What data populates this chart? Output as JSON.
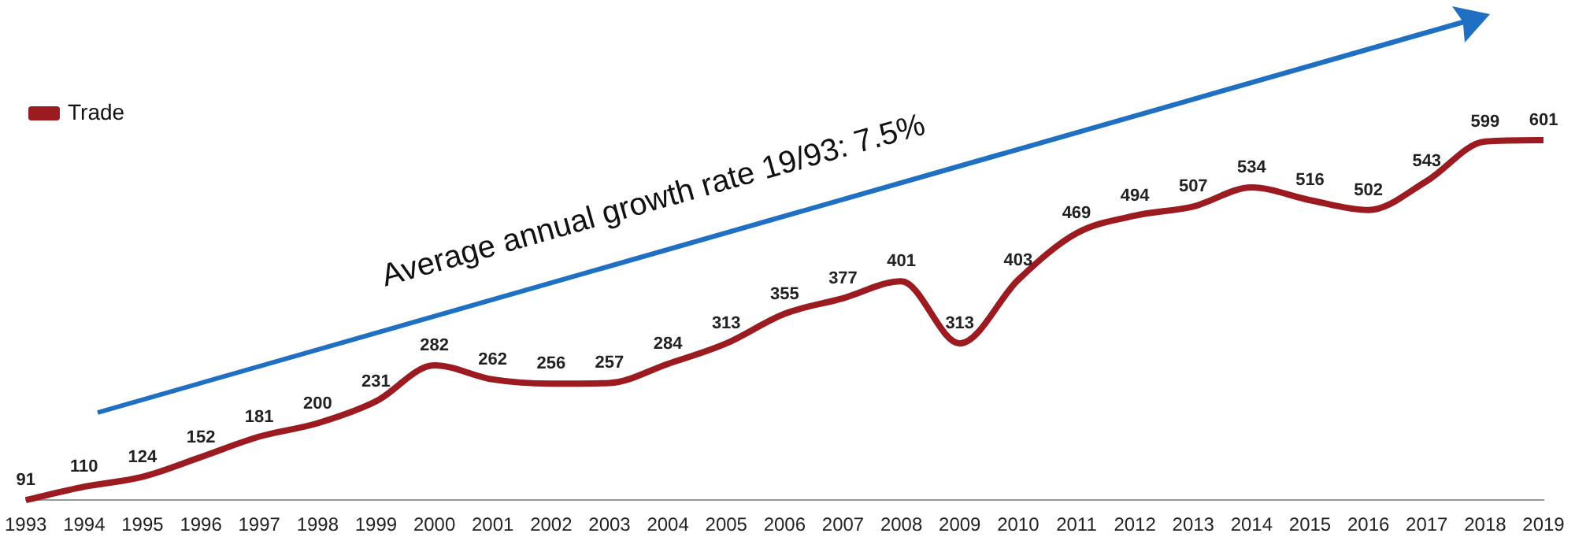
{
  "chart_data": {
    "type": "line",
    "categories": [
      "1993",
      "1994",
      "1995",
      "1996",
      "1997",
      "1998",
      "1999",
      "2000",
      "2001",
      "2002",
      "2003",
      "2004",
      "2005",
      "2006",
      "2007",
      "2008",
      "2009",
      "2010",
      "2011",
      "2012",
      "2013",
      "2014",
      "2015",
      "2016",
      "2017",
      "2018",
      "2019"
    ],
    "series": [
      {
        "name": "Trade",
        "color": "#9b1b21",
        "values": [
          91,
          110,
          124,
          152,
          181,
          200,
          231,
          282,
          262,
          256,
          257,
          284,
          313,
          355,
          377,
          401,
          313,
          403,
          469,
          494,
          507,
          534,
          516,
          502,
          543,
          599,
          601
        ]
      }
    ],
    "data_labels": true,
    "legend": "top left",
    "grid": false,
    "marker": "none",
    "annotations": [
      "Average annual growth rate 19/93: 7.5%"
    ]
  }
}
